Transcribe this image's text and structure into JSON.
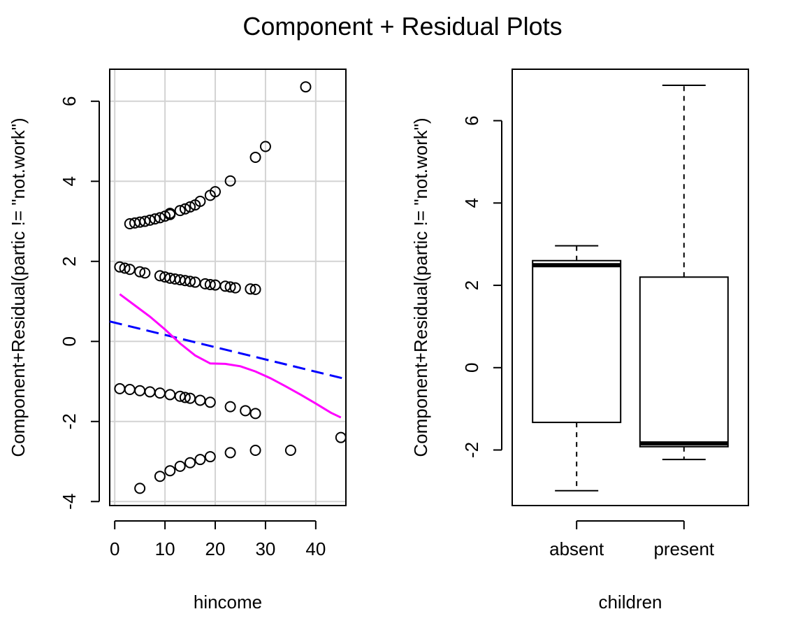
{
  "title": "Component + Residual Plots",
  "colors": {
    "fit_line": "#0000ff",
    "smooth_line": "#ff00ff",
    "grid": "#d3d3d3"
  },
  "chart_data": [
    {
      "type": "scatter",
      "xlabel": "hincome",
      "ylabel": "Component+Residual(partic != \"not.work\")",
      "xlim": [
        -1,
        46
      ],
      "ylim": [
        -4.1,
        6.8
      ],
      "xticks": [
        0,
        10,
        20,
        30,
        40
      ],
      "yticks": [
        -4,
        -2,
        0,
        2,
        4,
        6
      ],
      "grid": true,
      "points": [
        {
          "x": 3,
          "y": 2.94
        },
        {
          "x": 4,
          "y": 2.96
        },
        {
          "x": 5,
          "y": 2.98
        },
        {
          "x": 6,
          "y": 3.0
        },
        {
          "x": 7,
          "y": 3.03
        },
        {
          "x": 8,
          "y": 3.06
        },
        {
          "x": 9,
          "y": 3.09
        },
        {
          "x": 10,
          "y": 3.13
        },
        {
          "x": 11,
          "y": 3.17
        },
        {
          "x": 11,
          "y": 3.2
        },
        {
          "x": 13,
          "y": 3.27
        },
        {
          "x": 14,
          "y": 3.31
        },
        {
          "x": 15,
          "y": 3.36
        },
        {
          "x": 16,
          "y": 3.41
        },
        {
          "x": 17,
          "y": 3.5
        },
        {
          "x": 19,
          "y": 3.65
        },
        {
          "x": 20,
          "y": 3.74
        },
        {
          "x": 23,
          "y": 4.01
        },
        {
          "x": 28,
          "y": 4.6
        },
        {
          "x": 30,
          "y": 4.87
        },
        {
          "x": 38,
          "y": 6.36
        },
        {
          "x": 1,
          "y": 1.86
        },
        {
          "x": 2,
          "y": 1.83
        },
        {
          "x": 3,
          "y": 1.8
        },
        {
          "x": 5,
          "y": 1.74
        },
        {
          "x": 6,
          "y": 1.71
        },
        {
          "x": 9,
          "y": 1.64
        },
        {
          "x": 10,
          "y": 1.61
        },
        {
          "x": 11,
          "y": 1.58
        },
        {
          "x": 12,
          "y": 1.56
        },
        {
          "x": 13,
          "y": 1.54
        },
        {
          "x": 14,
          "y": 1.52
        },
        {
          "x": 15,
          "y": 1.5
        },
        {
          "x": 16,
          "y": 1.48
        },
        {
          "x": 18,
          "y": 1.44
        },
        {
          "x": 19,
          "y": 1.42
        },
        {
          "x": 20,
          "y": 1.41
        },
        {
          "x": 22,
          "y": 1.38
        },
        {
          "x": 23,
          "y": 1.36
        },
        {
          "x": 24,
          "y": 1.34
        },
        {
          "x": 27,
          "y": 1.31
        },
        {
          "x": 28,
          "y": 1.3
        },
        {
          "x": 1,
          "y": -1.18
        },
        {
          "x": 3,
          "y": -1.2
        },
        {
          "x": 5,
          "y": -1.23
        },
        {
          "x": 7,
          "y": -1.26
        },
        {
          "x": 9,
          "y": -1.29
        },
        {
          "x": 11,
          "y": -1.33
        },
        {
          "x": 13,
          "y": -1.37
        },
        {
          "x": 14,
          "y": -1.4
        },
        {
          "x": 15,
          "y": -1.42
        },
        {
          "x": 17,
          "y": -1.47
        },
        {
          "x": 19,
          "y": -1.52
        },
        {
          "x": 23,
          "y": -1.63
        },
        {
          "x": 26,
          "y": -1.73
        },
        {
          "x": 28,
          "y": -1.8
        },
        {
          "x": 5,
          "y": -3.67
        },
        {
          "x": 9,
          "y": -3.37
        },
        {
          "x": 11,
          "y": -3.23
        },
        {
          "x": 13,
          "y": -3.12
        },
        {
          "x": 15,
          "y": -3.03
        },
        {
          "x": 17,
          "y": -2.95
        },
        {
          "x": 19,
          "y": -2.88
        },
        {
          "x": 23,
          "y": -2.78
        },
        {
          "x": 28,
          "y": -2.72
        },
        {
          "x": 35,
          "y": -2.72
        },
        {
          "x": 45,
          "y": -2.4
        }
      ],
      "fit_line": {
        "x": [
          -1,
          46
        ],
        "y": [
          0.5,
          -0.94
        ]
      },
      "smooth_line": {
        "x": [
          1,
          4,
          7,
          10,
          13,
          16,
          19,
          22,
          25,
          28,
          31,
          34,
          37,
          40,
          43,
          45
        ],
        "y": [
          1.18,
          0.9,
          0.62,
          0.3,
          -0.05,
          -0.35,
          -0.55,
          -0.56,
          -0.62,
          -0.75,
          -0.92,
          -1.12,
          -1.33,
          -1.55,
          -1.78,
          -1.9
        ]
      }
    },
    {
      "type": "box",
      "xlabel": "children",
      "ylabel": "Component+Residual(partic != \"not.work\")",
      "ylim": [
        -3.35,
        7.25
      ],
      "yticks": [
        -2,
        0,
        2,
        4,
        6
      ],
      "categories": [
        "absent",
        "present"
      ],
      "boxes": [
        {
          "name": "absent",
          "whisker_low": -2.99,
          "q1": -1.33,
          "median": 2.49,
          "q3": 2.6,
          "whisker_high": 2.96
        },
        {
          "name": "present",
          "whisker_low": -2.23,
          "q1": -1.92,
          "median": -1.84,
          "q3": 2.2,
          "whisker_high": 6.86
        }
      ]
    }
  ]
}
